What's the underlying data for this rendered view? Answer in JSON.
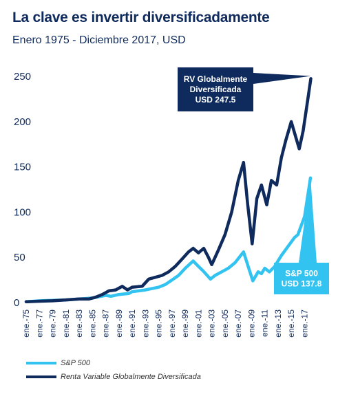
{
  "chart_data": {
    "type": "line",
    "title": "La clave es invertir diversificadamente",
    "subtitle": "Enero 1975 - Diciembre 2017, USD",
    "xlabel": "",
    "ylabel": "",
    "ylim": [
      0,
      260
    ],
    "yticks": [
      0,
      50,
      100,
      150,
      200,
      250
    ],
    "xlim": [
      1975,
      2018
    ],
    "xtick_labels": [
      "ene.-75",
      "ene.-77",
      "ene.-79",
      "ene.-81",
      "ene.-83",
      "ene.-85",
      "ene.-87",
      "ene.-89",
      "ene.-91",
      "ene.-93",
      "ene.-95",
      "ene.-97",
      "ene.-99",
      "ene.-01",
      "ene.-03",
      "ene.-05",
      "ene.-07",
      "ene.-09",
      "ene.-11",
      "ene.-13",
      "ene.-15",
      "ene.-17"
    ],
    "xtick_years": [
      1975,
      1977,
      1979,
      1981,
      1983,
      1985,
      1987,
      1989,
      1991,
      1993,
      1995,
      1997,
      1999,
      2001,
      2003,
      2005,
      2007,
      2009,
      2011,
      2013,
      2015,
      2017
    ],
    "legend_position": "bottom-left",
    "grid": false,
    "series": [
      {
        "name": "S&P 500",
        "color": "#33c3f0",
        "x": [
          1975,
          1977,
          1979,
          1981,
          1983,
          1985,
          1986,
          1987,
          1987.8,
          1989,
          1990.5,
          1991,
          1993,
          1995,
          1996,
          1997,
          1998,
          1999,
          2000.2,
          2001,
          2001.7,
          2002.8,
          2003.5,
          2004.5,
          2005.5,
          2006.5,
          2007.8,
          2008.5,
          2009.2,
          2010,
          2010.5,
          2011,
          2011.7,
          2012.5,
          2013.5,
          2014.5,
          2015.5,
          2016,
          2017,
          2017.9
        ],
        "values": [
          1,
          2,
          2.5,
          3,
          4,
          5,
          6.5,
          8,
          7,
          9,
          10,
          12,
          14,
          17,
          20,
          25,
          30,
          38,
          46,
          40,
          35,
          26,
          30,
          34,
          38,
          44,
          56,
          40,
          24,
          34,
          32,
          38,
          34,
          40,
          52,
          62,
          72,
          75,
          95,
          137.8
        ]
      },
      {
        "name": "Renta Variable Globalmente Diversificada",
        "color": "#0f2a5c",
        "x": [
          1975,
          1977,
          1979,
          1981,
          1983,
          1984.5,
          1985.5,
          1986.5,
          1987.5,
          1988.5,
          1989.5,
          1990.3,
          1991,
          1992.5,
          1993.5,
          1994.5,
          1995.5,
          1996.5,
          1997.5,
          1998.5,
          1999.5,
          2000.2,
          2001,
          2001.8,
          2002.5,
          2003,
          2004,
          2005,
          2006,
          2007,
          2007.8,
          2008.4,
          2009.1,
          2009.8,
          2010.5,
          2011.3,
          2012,
          2012.8,
          2013.5,
          2014.2,
          2015,
          2015.6,
          2016.2,
          2016.8,
          2017.5,
          2017.95
        ],
        "values": [
          1,
          1.5,
          2,
          3,
          4,
          4,
          6,
          9,
          13,
          14,
          18,
          14,
          17,
          18,
          26,
          28,
          30,
          34,
          40,
          48,
          56,
          60,
          55,
          60,
          50,
          42,
          58,
          75,
          100,
          135,
          155,
          110,
          65,
          115,
          130,
          108,
          135,
          130,
          160,
          180,
          200,
          185,
          170,
          190,
          225,
          247.5
        ]
      }
    ],
    "callouts": [
      {
        "series": "Renta Variable Globalmente Diversificada",
        "lines": [
          "RV Globalmente",
          "Diversificada",
          "USD 247.5"
        ],
        "color": "#0f2a5c"
      },
      {
        "series": "S&P 500",
        "lines": [
          "S&P 500",
          "USD 137.8"
        ],
        "color": "#33c3f0"
      }
    ]
  }
}
